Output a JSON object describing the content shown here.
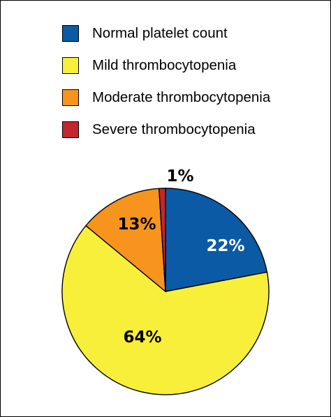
{
  "chart_data": {
    "type": "pie",
    "start_angle_deg": 0,
    "direction": "clockwise",
    "slices": [
      {
        "name": "Normal platelet count",
        "value": 22,
        "label": "22%",
        "color": "#0b5aa6",
        "label_color": "#ffffff"
      },
      {
        "name": "Mild thrombocytopenia",
        "value": 64,
        "label": "64%",
        "color": "#f8ef3a",
        "label_color": "#000000"
      },
      {
        "name": "Moderate thrombocytopenia",
        "value": 13,
        "label": "13%",
        "color": "#f7941d",
        "label_color": "#000000"
      },
      {
        "name": "Severe thrombocytopenia",
        "value": 1,
        "label": "1%",
        "color": "#c1272d",
        "label_color": "#000000"
      }
    ],
    "legend": [
      {
        "label": "Normal platelet count",
        "color": "#0b5aa6"
      },
      {
        "label": "Mild thrombocytopenia",
        "color": "#f8ef3a"
      },
      {
        "label": "Moderate thrombocytopenia",
        "color": "#f7941d"
      },
      {
        "label": "Severe thrombocytopenia",
        "color": "#c1272d"
      }
    ],
    "legend_position": "top"
  }
}
